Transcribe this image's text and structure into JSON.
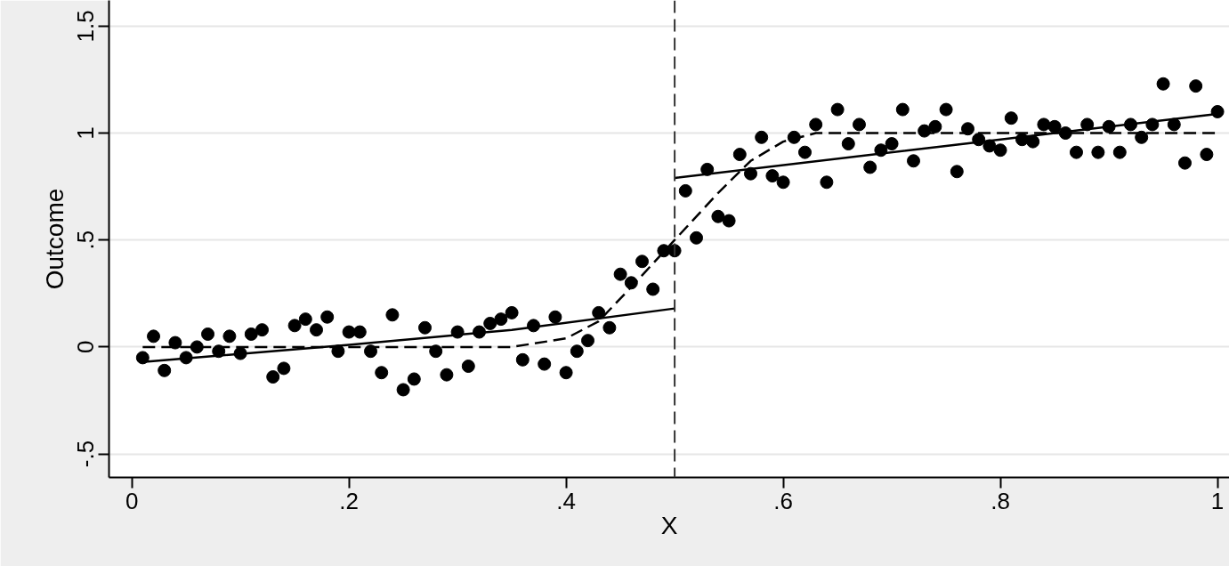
{
  "chart_data": {
    "type": "scatter",
    "xlabel": "X",
    "ylabel": "Outcome",
    "xlim": [
      -0.021,
      1.011
    ],
    "ylim": [
      -0.61,
      1.62
    ],
    "xticks": [
      0,
      {
        "value": 0.2,
        "label": ".2"
      },
      {
        "value": 0.4,
        "label": ".4"
      },
      {
        "value": 0.6,
        "label": ".6"
      },
      {
        "value": 0.8,
        "label": ".8"
      },
      1
    ],
    "yticks": [
      {
        "value": -0.5,
        "label": "-.5"
      },
      0,
      {
        "value": 0.5,
        "label": ".5"
      },
      1,
      {
        "value": 1.5,
        "label": "1.5"
      }
    ],
    "grid": "y",
    "ref_lines": [
      {
        "axis": "x",
        "value": 0.5,
        "color": "#333333",
        "line_style": "dashed"
      }
    ],
    "series": [
      {
        "marker": "circle",
        "color": "#000000",
        "x": [
          0.01,
          0.02,
          0.03,
          0.04,
          0.05,
          0.06,
          0.07,
          0.08,
          0.09,
          0.1,
          0.11,
          0.12,
          0.13,
          0.14,
          0.15,
          0.16,
          0.17,
          0.18,
          0.19,
          0.2,
          0.21,
          0.22,
          0.23,
          0.24,
          0.25,
          0.26,
          0.27,
          0.28,
          0.29,
          0.3,
          0.31,
          0.32,
          0.33,
          0.34,
          0.35,
          0.36,
          0.37,
          0.38,
          0.39,
          0.4,
          0.41,
          0.42,
          0.43,
          0.44,
          0.45,
          0.46,
          0.47,
          0.48,
          0.49,
          0.5,
          0.51,
          0.52,
          0.53,
          0.54,
          0.55,
          0.56,
          0.57,
          0.58,
          0.59,
          0.6,
          0.61,
          0.62,
          0.63,
          0.64,
          0.65,
          0.66,
          0.67,
          0.68,
          0.69,
          0.7,
          0.71,
          0.72,
          0.73,
          0.74,
          0.75,
          0.76,
          0.77,
          0.78,
          0.79,
          0.8,
          0.81,
          0.82,
          0.83,
          0.84,
          0.85,
          0.86,
          0.87,
          0.88,
          0.89,
          0.9,
          0.91,
          0.92,
          0.93,
          0.94,
          0.95,
          0.96,
          0.97,
          0.98,
          0.99,
          1.0
        ],
        "values": [
          -0.05,
          0.05,
          -0.11,
          0.02,
          -0.05,
          0.0,
          0.06,
          -0.02,
          0.05,
          -0.03,
          0.06,
          0.08,
          -0.14,
          -0.1,
          0.1,
          0.13,
          0.08,
          0.14,
          -0.02,
          0.07,
          0.07,
          -0.02,
          -0.12,
          0.15,
          -0.2,
          -0.15,
          0.09,
          -0.02,
          -0.13,
          0.07,
          -0.09,
          0.07,
          0.11,
          0.13,
          0.16,
          -0.06,
          0.1,
          -0.08,
          0.14,
          -0.12,
          -0.02,
          0.03,
          0.16,
          0.09,
          0.34,
          0.3,
          0.4,
          0.27,
          0.45,
          0.45,
          0.73,
          0.51,
          0.83,
          0.61,
          0.59,
          0.9,
          0.81,
          0.98,
          0.8,
          0.77,
          0.98,
          0.91,
          1.04,
          0.77,
          1.11,
          0.95,
          1.04,
          0.84,
          0.92,
          0.95,
          1.11,
          0.87,
          1.01,
          1.03,
          1.11,
          0.82,
          1.02,
          0.97,
          0.94,
          0.92,
          1.07,
          0.97,
          0.96,
          1.04,
          1.03,
          1.0,
          0.91,
          1.04,
          0.91,
          1.03,
          0.91,
          1.04,
          0.98,
          1.04,
          1.23,
          1.04,
          0.86,
          1.22,
          0.9,
          1.1
        ]
      },
      {
        "type": "line",
        "marker": "none",
        "color": "#000000",
        "line_style": "solid",
        "x": [
          0.01,
          0.2,
          0.35,
          0.5
        ],
        "values": [
          -0.07,
          0.01,
          0.08,
          0.18
        ]
      },
      {
        "type": "line",
        "marker": "none",
        "color": "#000000",
        "line_style": "solid",
        "x": [
          0.5,
          0.75,
          1.0
        ],
        "values": [
          0.79,
          0.94,
          1.09
        ]
      },
      {
        "type": "line",
        "marker": "none",
        "color": "#000000",
        "line_style": "dashed",
        "x": [
          0.01,
          0.35,
          0.4,
          0.43,
          0.46,
          0.5,
          0.54,
          0.57,
          0.6,
          0.63,
          1.0
        ],
        "values": [
          0.0,
          0.0,
          0.04,
          0.12,
          0.28,
          0.5,
          0.72,
          0.87,
          0.96,
          1.0,
          1.0
        ]
      }
    ]
  }
}
